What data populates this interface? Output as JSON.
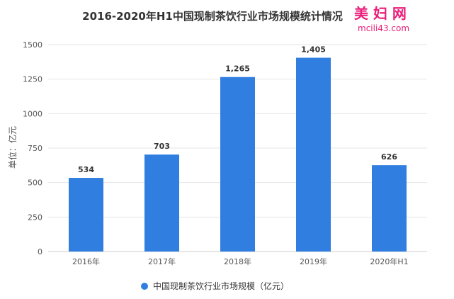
{
  "colors": {
    "bar": "#2f7ee0",
    "grid": "#e6e6e6",
    "axis": "#cccccc",
    "logo": "#e91e7a"
  },
  "watermark_logo": {
    "brand": "美 妇 网",
    "url": "mcili43.com"
  },
  "chart_data": {
    "type": "bar",
    "title": "2016-2020年H1中国现制茶饮行业市场规模统计情况",
    "ylabel": "单位：亿元",
    "xlabel": "",
    "categories": [
      "2016年",
      "2017年",
      "2018年",
      "2019年",
      "2020年H1"
    ],
    "series": [
      {
        "name": "中国现制茶饮行业市场规模（亿元）",
        "values": [
          534,
          703,
          1265,
          1405,
          626
        ]
      }
    ],
    "value_labels": [
      "534",
      "703",
      "1,265",
      "1,405",
      "626"
    ],
    "ylim": [
      0,
      1500
    ],
    "yticks": [
      0,
      250,
      500,
      750,
      1000,
      1250,
      1500
    ],
    "grid": true,
    "legend_position": "bottom"
  }
}
